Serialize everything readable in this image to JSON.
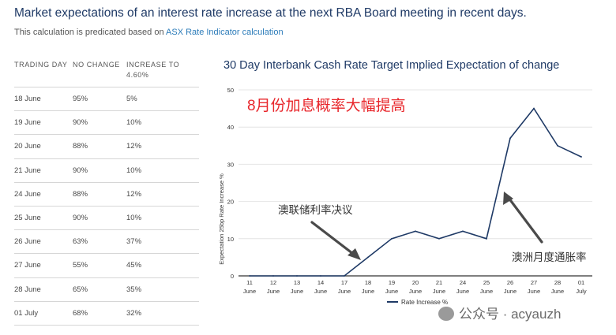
{
  "header": {
    "title": "Market expectations of an interest rate increase at the next RBA Board meeting in recent days.",
    "subtitle_prefix": "This calculation is predicated based on",
    "subtitle_link": "ASX Rate Indicator calculation"
  },
  "table": {
    "columns": [
      "TRADING DAY",
      "NO CHANGE",
      "INCREASE TO 4.60%"
    ],
    "rows": [
      [
        "18 June",
        "95%",
        "5%"
      ],
      [
        "19 June",
        "90%",
        "10%"
      ],
      [
        "20 June",
        "88%",
        "12%"
      ],
      [
        "21 June",
        "90%",
        "10%"
      ],
      [
        "24 June",
        "88%",
        "12%"
      ],
      [
        "25 June",
        "90%",
        "10%"
      ],
      [
        "26 June",
        "63%",
        "37%"
      ],
      [
        "27 June",
        "55%",
        "45%"
      ],
      [
        "28 June",
        "65%",
        "35%"
      ],
      [
        "01 July",
        "68%",
        "32%"
      ]
    ]
  },
  "chart_data": {
    "type": "line",
    "title": "30 Day Interbank Cash Rate Target Implied Expectation of change",
    "ylabel": "Expectation 25bp Rate Increase %",
    "xlabel": "",
    "ylim": [
      0,
      50
    ],
    "yticks": [
      0,
      10,
      20,
      30,
      40,
      50
    ],
    "grid": true,
    "legend_position": "bottom",
    "categories": [
      [
        "11",
        "June"
      ],
      [
        "12",
        "June"
      ],
      [
        "13",
        "June"
      ],
      [
        "14",
        "June"
      ],
      [
        "17",
        "June"
      ],
      [
        "18",
        "June"
      ],
      [
        "19",
        "June"
      ],
      [
        "20",
        "June"
      ],
      [
        "21",
        "June"
      ],
      [
        "24",
        "June"
      ],
      [
        "25",
        "June"
      ],
      [
        "26",
        "June"
      ],
      [
        "27",
        "June"
      ],
      [
        "28",
        "June"
      ],
      [
        "01",
        "July"
      ]
    ],
    "series": [
      {
        "name": "Rate Increase %",
        "color": "#1f3a66",
        "values": [
          0,
          0,
          0,
          0,
          0,
          5,
          10,
          12,
          10,
          12,
          10,
          37,
          45,
          35,
          32
        ]
      }
    ],
    "annotations": [
      {
        "text": "8月份加息概率大幅提高",
        "color": "#e8262b"
      },
      {
        "text": "澳联储利率决议",
        "color": "#333333"
      },
      {
        "text": "澳洲月度通胀率",
        "color": "#333333"
      }
    ]
  },
  "watermark": {
    "text": "公众号 · acyauzh"
  }
}
